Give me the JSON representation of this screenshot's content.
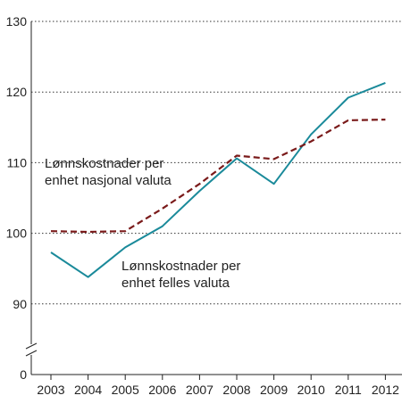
{
  "chart_data": {
    "type": "line",
    "x": [
      "2003",
      "2004",
      "2005",
      "2006",
      "2007",
      "2008",
      "2009",
      "2010",
      "2011",
      "2012"
    ],
    "series": [
      {
        "name": "Lønnskostnader per enhet felles valuta",
        "color": "#1a8a9a",
        "dash": "solid",
        "values": [
          97.3,
          93.8,
          98.0,
          101.0,
          106.0,
          110.6,
          107.0,
          114.0,
          119.2,
          121.3
        ]
      },
      {
        "name": "Lønnskostnader per enhet nasjonal valuta",
        "color": "#7a1a1a",
        "dash": "dashed",
        "values": [
          100.3,
          100.2,
          100.3,
          103.5,
          107.0,
          111.0,
          110.5,
          113.0,
          116.0,
          116.1
        ]
      }
    ],
    "ylim": [
      0,
      130
    ],
    "axis_break": true,
    "yticks": [
      "0",
      "90",
      "100",
      "110",
      "120",
      "130"
    ],
    "grid": "horizontal-dotted",
    "legend": "inline-annotations",
    "annotations": [
      {
        "series": 1,
        "lines": [
          "Lønnskostnader per",
          "enhet nasjonal valuta"
        ]
      },
      {
        "series": 0,
        "lines": [
          "Lønnskostnader per",
          "enhet felles valuta"
        ]
      }
    ],
    "title": "",
    "xlabel": "",
    "ylabel": ""
  }
}
